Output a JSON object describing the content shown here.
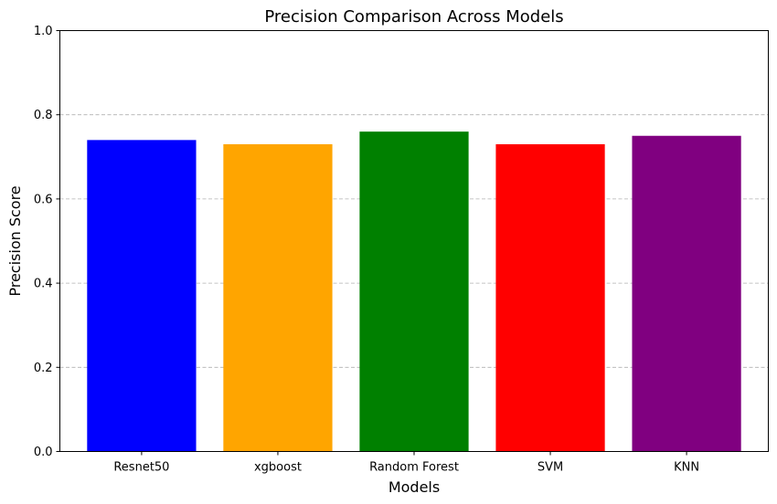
{
  "chart_data": {
    "type": "bar",
    "title": "Precision Comparison Across Models",
    "xlabel": "Models",
    "ylabel": "Precision Score",
    "categories": [
      "Resnet50",
      "xgboost",
      "Random Forest",
      "SVM",
      "KNN"
    ],
    "values": [
      0.74,
      0.73,
      0.76,
      0.73,
      0.75
    ],
    "colors": [
      "#0000ff",
      "#ffa500",
      "#008000",
      "#ff0000",
      "#800080"
    ],
    "ylim": [
      0,
      1.0
    ],
    "yticks": [
      "0.0",
      "0.2",
      "0.4",
      "0.6",
      "0.8",
      "1.0"
    ],
    "grid": "y-dashed"
  }
}
